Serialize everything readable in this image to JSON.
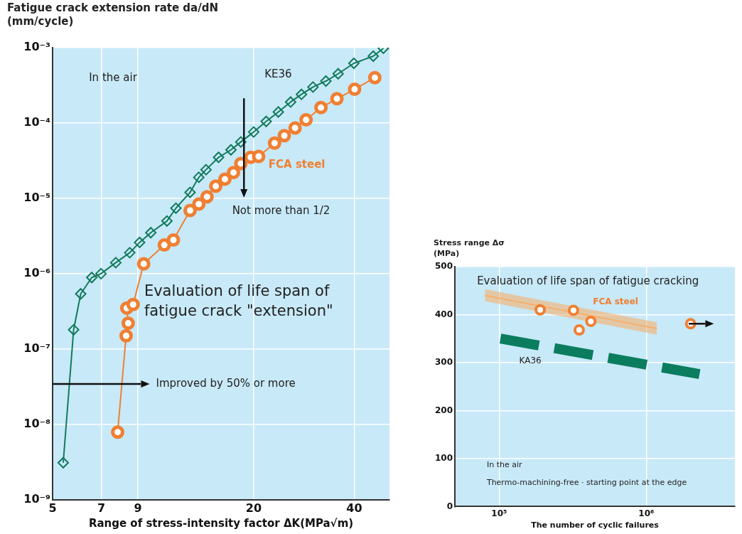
{
  "chart_data": [
    {
      "type": "line",
      "xlabel": "Range of stress-intensity factor ΔK(MPa√m)",
      "ylabel": "Fatigue crack extension rate da/dN\n(mm/cycle)",
      "log": "xy",
      "grid": true,
      "xlim": [
        5,
        51
      ],
      "xticks": [
        5,
        7,
        9,
        20,
        40
      ],
      "ylim": [
        1e-09,
        0.001
      ],
      "yticks": [
        {
          "value": 1e-09,
          "label": "10⁻⁹"
        },
        {
          "value": 1e-08,
          "label": "10⁻⁸"
        },
        {
          "value": 1e-07,
          "label": "10⁻⁷"
        },
        {
          "value": 1e-06,
          "label": "10⁻⁶"
        },
        {
          "value": 1e-05,
          "label": "10⁻⁵"
        },
        {
          "value": 0.0001,
          "label": "10⁻⁴"
        },
        {
          "value": 0.001,
          "label": "10⁻³"
        }
      ],
      "annotations": [
        "In the air",
        "Not more than 1/2",
        "Evaluation of life span of\nfatigue crack \"extension\"",
        "Improved by 50% or more"
      ],
      "series": [
        {
          "name": "KE36",
          "color": "#127a5c",
          "marker": "diamond",
          "x": [
            5.38,
            5.78,
            6.07,
            6.55,
            6.98,
            7.73,
            8.51,
            9.11,
            9.84,
            11.0,
            11.7,
            12.9,
            13.7,
            14.4,
            15.7,
            17.1,
            18.3,
            20.0,
            21.8,
            23.7,
            25.8,
            27.8,
            30.1,
            32.9,
            35.8,
            39.9,
            45.6,
            48.9
          ],
          "values": [
            3.1e-09,
            1.8e-07,
            5.4e-07,
            8.9e-07,
            1e-06,
            1.4e-06,
            1.9e-06,
            2.6e-06,
            3.5e-06,
            5e-06,
            7.4e-06,
            1.2e-05,
            1.9e-05,
            2.4e-05,
            3.5e-05,
            4.4e-05,
            5.6e-05,
            7.6e-05,
            0.000105,
            0.00014,
            0.00019,
            0.00024,
            0.0003,
            0.00036,
            0.00045,
            0.00062,
            0.00077,
            0.00098
          ]
        },
        {
          "name": "FCA steel",
          "color": "#f07f32",
          "marker": "circle",
          "x": [
            7.83,
            8.3,
            8.42,
            8.34,
            8.71,
            9.37,
            10.8,
            11.5,
            12.9,
            13.7,
            14.5,
            15.4,
            16.4,
            17.4,
            18.3,
            19.6,
            20.7,
            23.1,
            24.7,
            26.6,
            28.7,
            31.8,
            35.5,
            40.1,
            46.1
          ],
          "values": [
            7.9e-09,
            1.5e-07,
            2.2e-07,
            3.5e-07,
            3.9e-07,
            1.35e-06,
            2.4e-06,
            2.8e-06,
            6.9e-06,
            8.4e-06,
            1.05e-05,
            1.45e-05,
            1.8e-05,
            2.2e-05,
            2.9e-05,
            3.5e-05,
            3.6e-05,
            5.4e-05,
            6.8e-05,
            8.6e-05,
            0.00011,
            0.00016,
            0.00021,
            0.00028,
            0.0004
          ]
        }
      ]
    },
    {
      "type": "scatter",
      "xlabel": "The number of cyclic failures",
      "ylabel": "Stress range Δσ\n(MPa)",
      "log": "x",
      "grid": true,
      "xlim": [
        50000,
        4000000
      ],
      "xticks": [
        {
          "value": 100000,
          "label": "10⁵"
        },
        {
          "value": 1000000,
          "label": "10⁶"
        }
      ],
      "ylim": [
        0,
        500
      ],
      "yticks": [
        0,
        100,
        200,
        300,
        400,
        500
      ],
      "annotations": [
        "Evaluation of life span of fatigue cracking",
        "In the air",
        "Thermo-machining-free · starting point at the edge"
      ],
      "series": [
        {
          "type": "line",
          "color": "#f5b06e",
          "marker": "none",
          "x": [
            80000,
            1180000
          ],
          "values": [
            440,
            371
          ],
          "lower": [
            428,
            358
          ],
          "upper": [
            453,
            384
          ]
        },
        {
          "name": "FCA steel",
          "color": "#f07f32",
          "marker": "circle",
          "x": [
            190000,
            320000,
            420000,
            350000,
            2000000
          ],
          "values": [
            410,
            409,
            386,
            368,
            381
          ]
        },
        {
          "type": "line",
          "name": "KA36",
          "color": "#0b7d5e",
          "line_style": "dashed",
          "marker": "none",
          "x": [
            102000,
            2300000
          ],
          "values": [
            350,
            276
          ]
        }
      ]
    }
  ]
}
